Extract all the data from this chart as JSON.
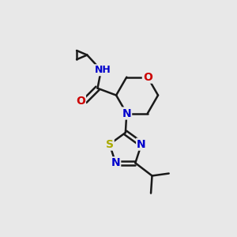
{
  "bg_color": "#e8e8e8",
  "bond_color": "#1a1a1a",
  "line_width": 1.8,
  "atom_colors": {
    "N": "#0000cc",
    "O": "#cc0000",
    "S": "#aaaa00",
    "C": "#1a1a1a",
    "H": "#007070"
  },
  "font_size": 10,
  "font_size_small": 9
}
